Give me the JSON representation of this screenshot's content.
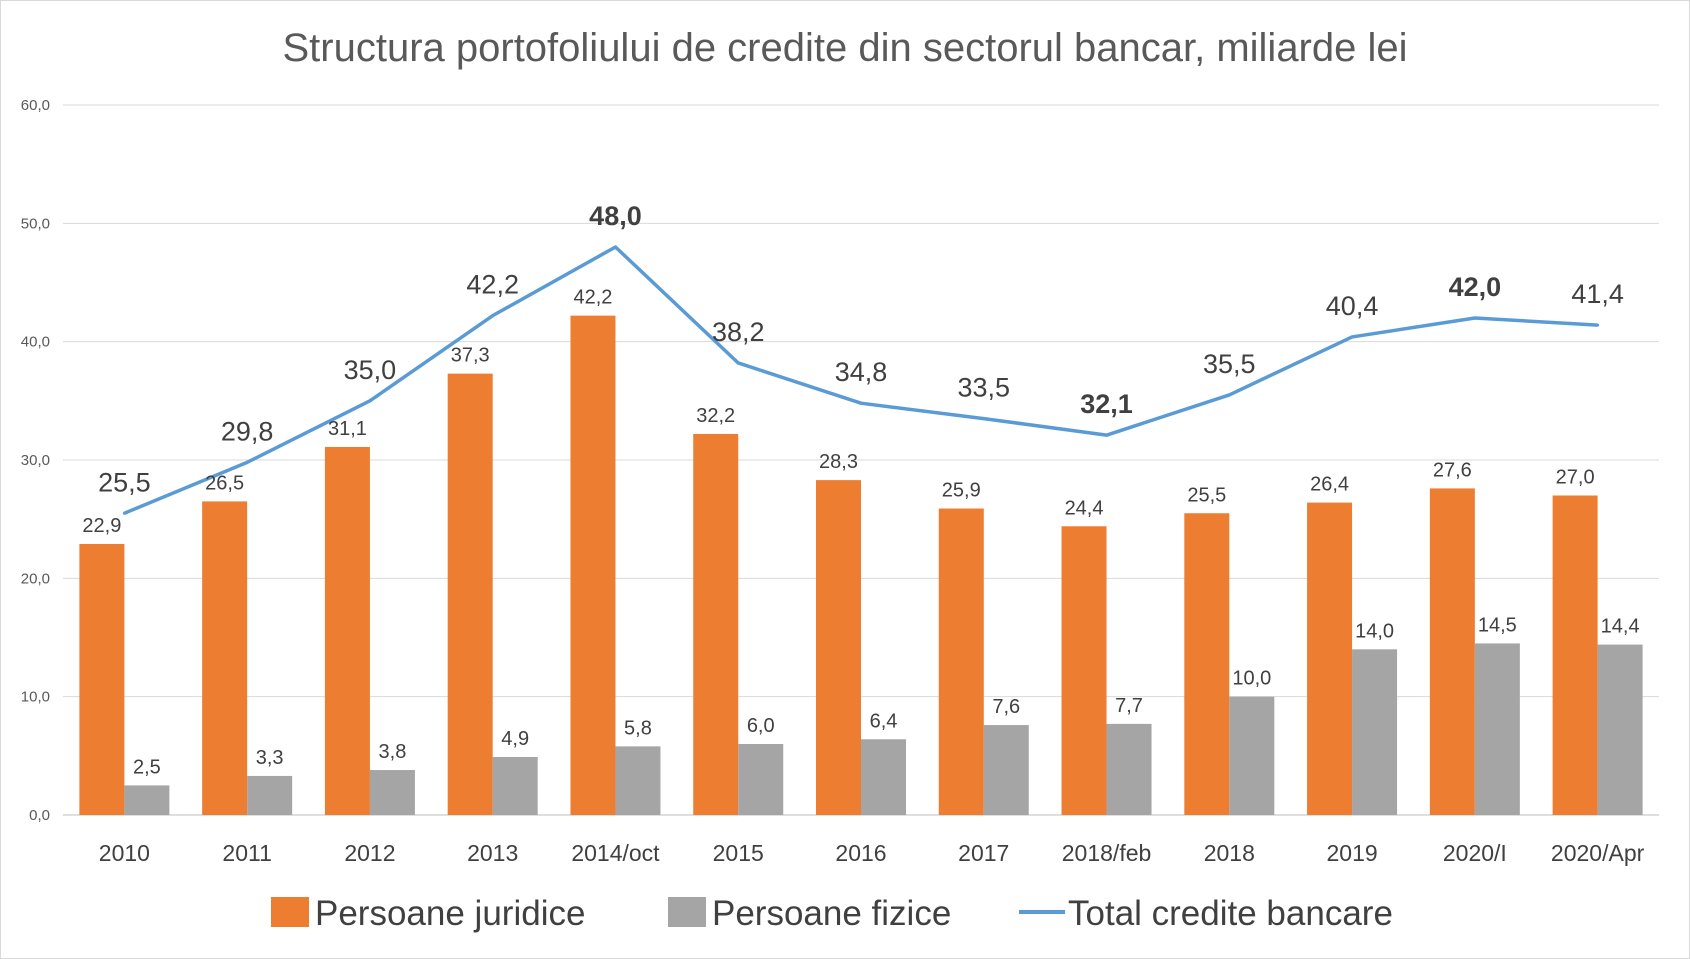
{
  "chart_data": {
    "type": "bar",
    "title": "Structura portofoliului de credite din sectorul bancar, miliarde lei",
    "xlabel": "",
    "ylabel": "",
    "ylim": [
      0,
      60
    ],
    "yticks": [
      "0,0",
      "10,0",
      "20,0",
      "30,0",
      "40,0",
      "50,0",
      "60,0"
    ],
    "ytick_values": [
      0,
      10,
      20,
      30,
      40,
      50,
      60
    ],
    "grid": true,
    "legend_position": "bottom",
    "categories": [
      "2010",
      "2011",
      "2012",
      "2013",
      "2014/oct",
      "2015",
      "2016",
      "2017",
      "2018/feb",
      "2018",
      "2019",
      "2020/I",
      "2020/Apr"
    ],
    "series": [
      {
        "name": "Persoane juridice",
        "type": "bar",
        "color": "#ed7d31",
        "values": [
          22.9,
          26.5,
          31.1,
          37.3,
          42.2,
          32.2,
          28.3,
          25.9,
          24.4,
          25.5,
          26.4,
          27.6,
          27.0
        ],
        "labels": [
          "22,9",
          "26,5",
          "31,1",
          "37,3",
          "42,2",
          "32,2",
          "28,3",
          "25,9",
          "24,4",
          "25,5",
          "26,4",
          "27,6",
          "27,0"
        ]
      },
      {
        "name": "Persoane fizice",
        "type": "bar",
        "color": "#a5a5a5",
        "values": [
          2.5,
          3.3,
          3.8,
          4.9,
          5.8,
          6.0,
          6.4,
          7.6,
          7.7,
          10.0,
          14.0,
          14.5,
          14.4
        ],
        "labels": [
          "2,5",
          "3,3",
          "3,8",
          "4,9",
          "5,8",
          "6,0",
          "6,4",
          "7,6",
          "7,7",
          "10,0",
          "14,0",
          "14,5",
          "14,4"
        ]
      },
      {
        "name": "Total credite bancare",
        "type": "line",
        "color": "#5b9bd5",
        "values": [
          25.5,
          29.8,
          35.0,
          42.2,
          48.0,
          38.2,
          34.8,
          33.5,
          32.1,
          35.5,
          40.4,
          42.0,
          41.4
        ],
        "labels": [
          "25,5",
          "29,8",
          "35,0",
          "42,2",
          "48,0",
          "38,2",
          "34,8",
          "33,5",
          "32,1",
          "35,5",
          "40,4",
          "42,0",
          "41,4"
        ],
        "bold_label_indices": [
          4,
          8,
          11
        ]
      }
    ]
  }
}
